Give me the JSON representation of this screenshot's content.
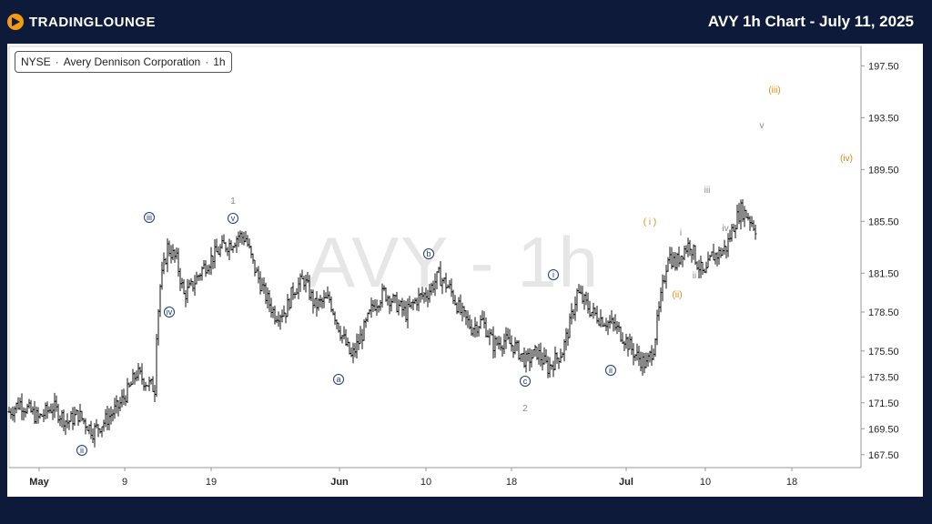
{
  "header": {
    "brand": "TRADINGLOUNGE",
    "title": "AVY 1h Chart - July 11, 2025"
  },
  "legend": {
    "exchange": "NYSE",
    "name": "Avery Dennison Corporation",
    "interval": "1h"
  },
  "watermark": "AVY - 1h",
  "chart_data": {
    "type": "candlestick",
    "symbol": "AVY",
    "y_ticks": [
      197.5,
      193.5,
      189.5,
      185.5,
      181.5,
      178.5,
      175.5,
      173.5,
      171.5,
      169.5,
      167.5
    ],
    "y_range": [
      166.5,
      199.0
    ],
    "x_ticks": [
      "May",
      "9",
      "19",
      "Jun",
      "10",
      "18",
      "Jul",
      "10",
      "18"
    ],
    "price_path": [
      [
        0,
        170.8
      ],
      [
        3,
        171.5
      ],
      [
        8,
        170.3
      ],
      [
        12,
        171.2
      ],
      [
        16,
        170.0
      ],
      [
        19,
        170.6
      ],
      [
        23,
        169.3
      ],
      [
        26,
        170.0
      ],
      [
        30,
        171.2
      ],
      [
        33,
        172.6
      ],
      [
        35,
        173.8
      ],
      [
        38,
        173.0
      ],
      [
        40,
        172.6
      ],
      [
        40.5,
        177.0
      ],
      [
        41.5,
        180.5
      ],
      [
        43.5,
        183.5
      ],
      [
        46,
        182.5
      ],
      [
        48,
        179.8
      ],
      [
        50,
        180.4
      ],
      [
        53,
        181.8
      ],
      [
        56,
        182.8
      ],
      [
        59,
        183.6
      ],
      [
        61,
        183.8
      ],
      [
        63,
        184.4
      ],
      [
        65,
        184.2
      ],
      [
        67,
        182.2
      ],
      [
        70,
        180.0
      ],
      [
        73,
        178.3
      ],
      [
        76,
        178.6
      ],
      [
        78,
        180.2
      ],
      [
        81,
        181.0
      ],
      [
        84,
        179.0
      ],
      [
        88,
        179.5
      ],
      [
        91,
        177.0
      ],
      [
        94,
        175.0
      ],
      [
        97,
        176.8
      ],
      [
        100,
        179.0
      ],
      [
        103,
        180.0
      ],
      [
        106,
        179.2
      ],
      [
        109,
        178.4
      ],
      [
        112,
        179.5
      ],
      [
        115,
        180.0
      ],
      [
        118,
        181.3
      ],
      [
        121,
        180.3
      ],
      [
        124,
        178.5
      ],
      [
        127,
        177.3
      ],
      [
        130,
        177.8
      ],
      [
        133,
        176.0
      ],
      [
        136,
        176.3
      ],
      [
        139,
        175.8
      ],
      [
        142,
        174.7
      ],
      [
        145,
        175.4
      ],
      [
        148,
        174.2
      ],
      [
        150,
        174.8
      ],
      [
        152,
        175.5
      ],
      [
        154,
        177.5
      ],
      [
        156,
        180.0
      ],
      [
        158,
        179.3
      ],
      [
        160,
        178.5
      ],
      [
        163,
        177.9
      ],
      [
        166,
        177.5
      ],
      [
        169,
        176.5
      ],
      [
        172,
        175.2
      ],
      [
        175,
        174.4
      ],
      [
        177,
        175.8
      ],
      [
        179,
        179.5
      ],
      [
        181,
        183.0
      ],
      [
        183,
        182.2
      ],
      [
        185,
        183.2
      ],
      [
        187,
        183.8
      ],
      [
        189,
        182.3
      ],
      [
        191,
        181.2
      ],
      [
        193,
        182.8
      ],
      [
        195,
        183.0
      ],
      [
        197,
        183.5
      ],
      [
        199,
        185.2
      ],
      [
        201,
        186.4
      ],
      [
        203,
        185.9
      ],
      [
        205,
        185.0
      ]
    ],
    "wave_labels": [
      {
        "text": "iii",
        "style": "circle"
      },
      {
        "text": "iv",
        "style": "circle"
      },
      {
        "text": "v",
        "style": "circle"
      },
      {
        "text": "ii",
        "style": "circle"
      },
      {
        "text": "a",
        "style": "circle"
      },
      {
        "text": "b",
        "style": "circle"
      },
      {
        "text": "c",
        "style": "circle"
      },
      {
        "text": "i",
        "style": "circle"
      },
      {
        "text": "ii",
        "style": "circle"
      },
      {
        "text": "1",
        "style": "plain"
      },
      {
        "text": "2",
        "style": "plain"
      },
      {
        "text": "( i )",
        "style": "orange"
      },
      {
        "text": "(ii)",
        "style": "orange"
      },
      {
        "text": "(iii)",
        "style": "orange"
      },
      {
        "text": "(iv)",
        "style": "orange"
      },
      {
        "text": "i",
        "style": "plain"
      },
      {
        "text": "ii",
        "style": "plain"
      },
      {
        "text": "iii",
        "style": "plain"
      },
      {
        "text": "iv",
        "style": "plain"
      },
      {
        "text": "v",
        "style": "plain"
      }
    ],
    "colors": {
      "candle": "#111111",
      "background": "#ffffff",
      "frame": "#0e1a3a",
      "orange": "#e08a12",
      "blue": "#1f3b73"
    }
  }
}
